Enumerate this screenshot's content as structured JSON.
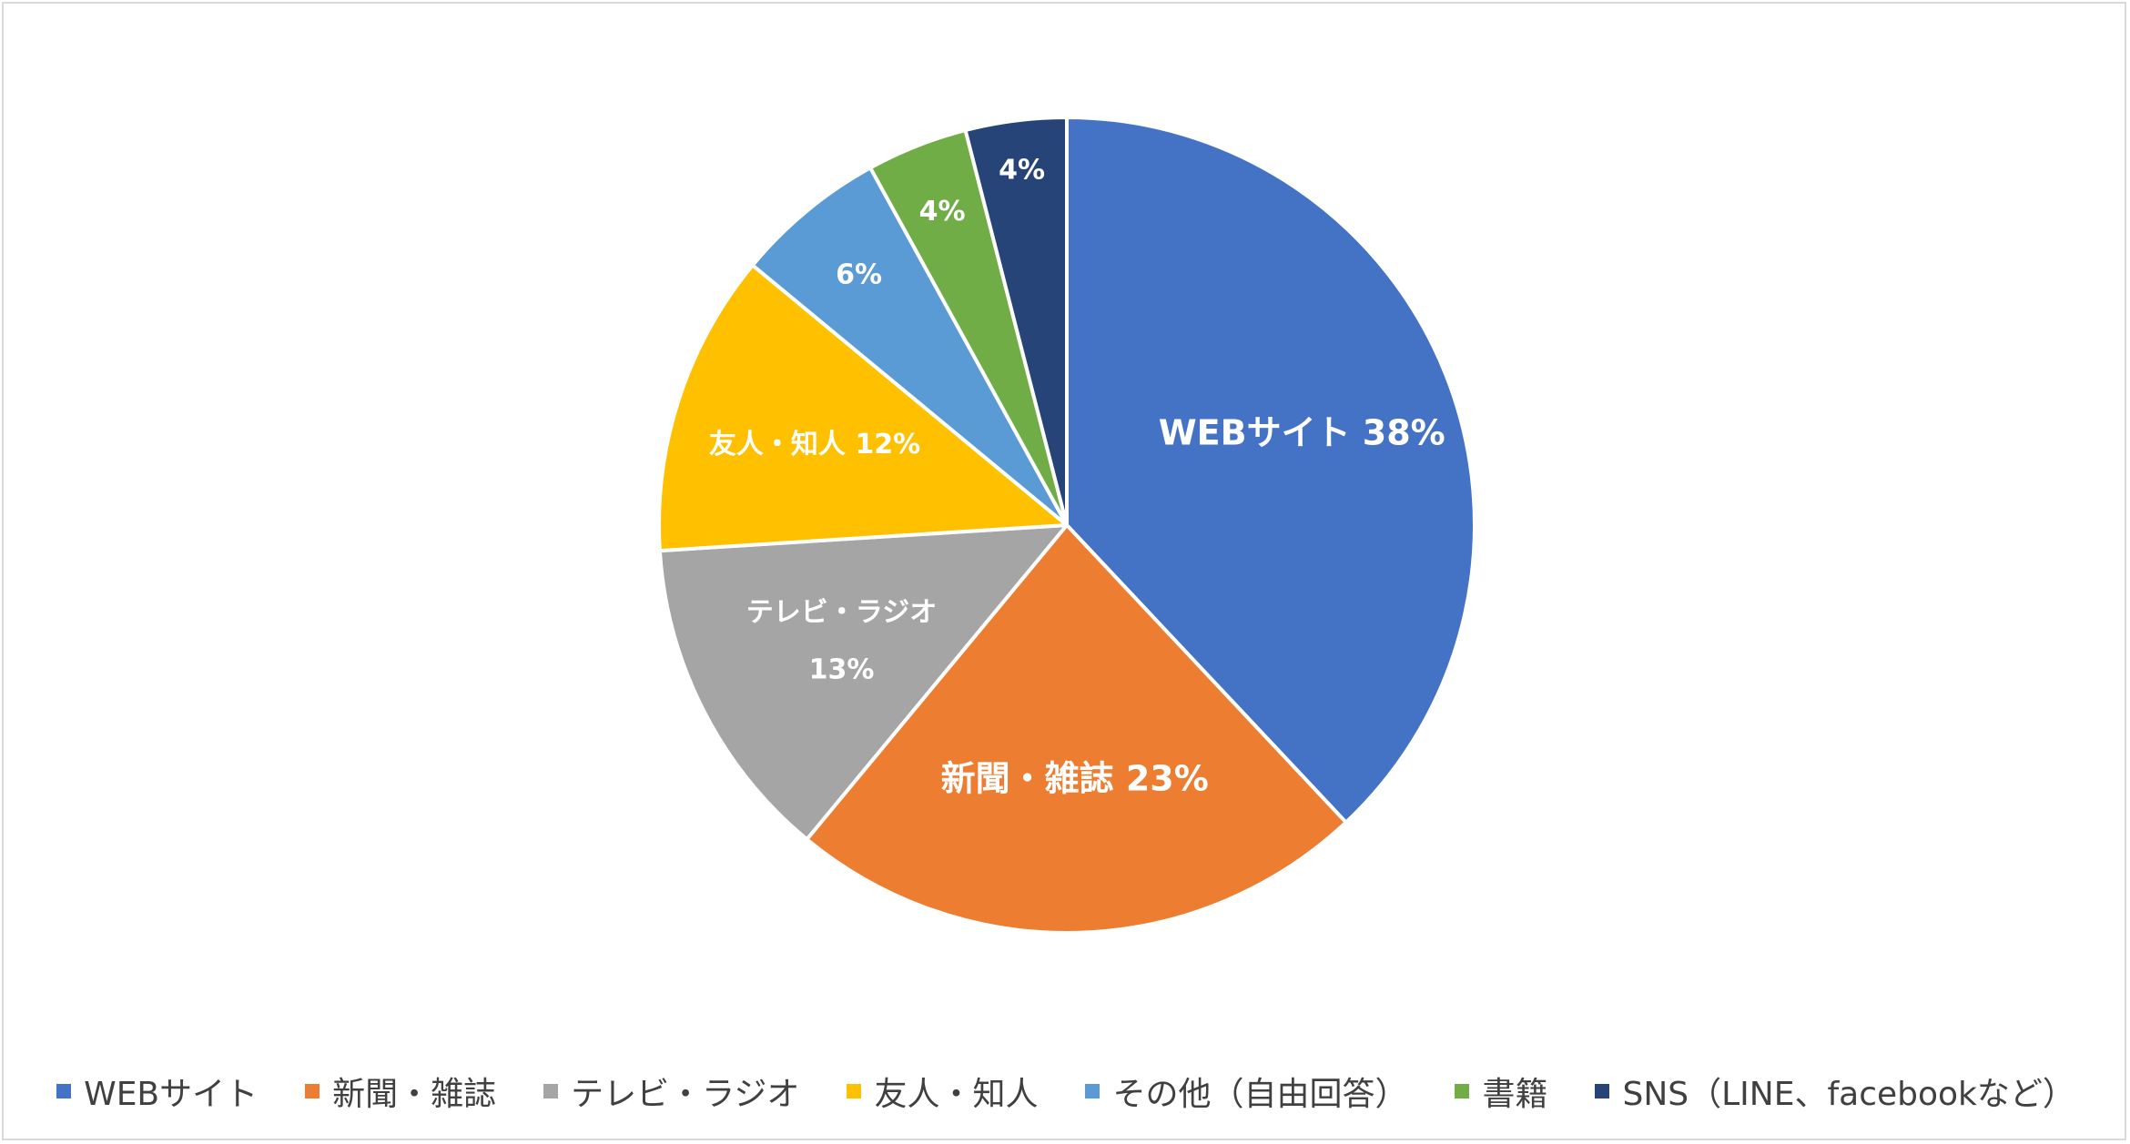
{
  "chart_data": {
    "type": "pie",
    "slices": [
      {
        "label": "WEBサイト",
        "value": 38,
        "display": "WEBサイト 38%",
        "color": "#4472C4"
      },
      {
        "label": "新聞・雑誌",
        "value": 23,
        "display": "新聞・雑誌 23%",
        "color": "#ED7D31"
      },
      {
        "label": "テレビ・ラジオ",
        "value": 13,
        "display": "テレビ・ラジオ|13%",
        "color": "#A5A5A5"
      },
      {
        "label": "友人・知人",
        "value": 12,
        "display": "友人・知人 12%",
        "color": "#FFC000"
      },
      {
        "label": "その他（自由回答）",
        "value": 6,
        "display": "6%",
        "color": "#5B9BD5"
      },
      {
        "label": "書籍",
        "value": 4,
        "display": "4%",
        "color": "#70AD47"
      },
      {
        "label": "SNS（LINE、facebookなど）",
        "value": 4,
        "display": "4%",
        "color": "#264478"
      }
    ],
    "start_angle": "12 o'clock",
    "direction": "clockwise",
    "legend_position": "bottom",
    "data_labels": "inside"
  }
}
